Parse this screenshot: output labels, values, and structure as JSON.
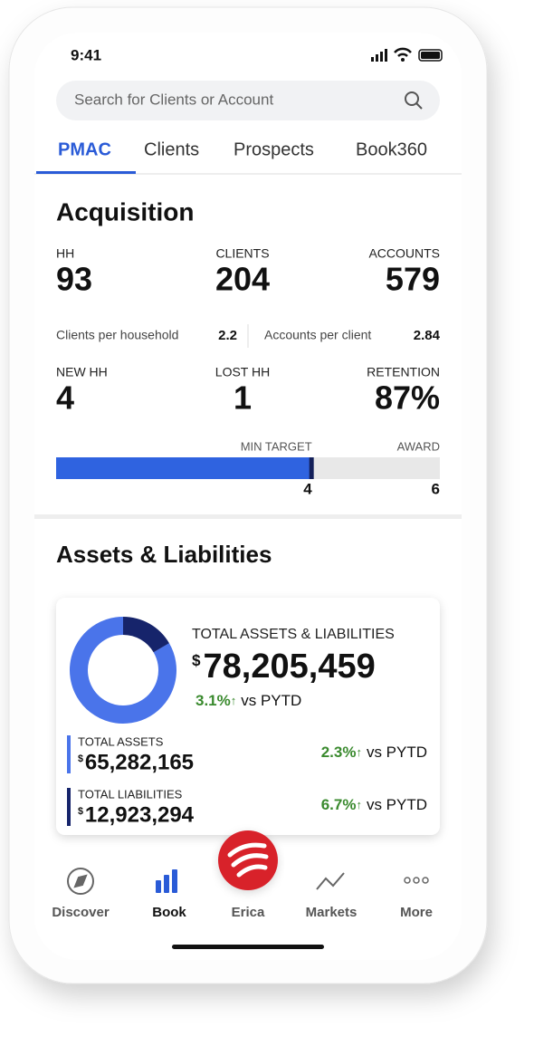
{
  "status_bar": {
    "time": "9:41"
  },
  "search": {
    "placeholder": "Search for Clients or Account"
  },
  "tabs": [
    "PMAC",
    "Clients",
    "Prospects",
    "Book360"
  ],
  "acquisition": {
    "title": "Acquisition",
    "stats": [
      {
        "label": "HH",
        "value": 93
      },
      {
        "label": "CLIENTS",
        "value": 204
      },
      {
        "label": "ACCOUNTS",
        "value": 579
      }
    ],
    "ratios": [
      {
        "label": "Clients per household",
        "value": 2.2
      },
      {
        "label": "Accounts per client",
        "value": 2.84
      }
    ],
    "retention_stats": [
      {
        "label": "NEW HH",
        "value": 4
      },
      {
        "label": "LOST HH",
        "value": 1
      },
      {
        "label": "RETENTION",
        "value": "87%"
      }
    ],
    "progress": {
      "min_target_label": "MIN TARGET",
      "min_target": 4,
      "award_label": "AWARD",
      "award": 6
    }
  },
  "assets_liabilities": {
    "title": "Assets & Liabilities",
    "total": {
      "label": "TOTAL ASSETS & LIABILITIES",
      "currency": "$",
      "amount": "78,205,459",
      "change": "3.1%",
      "arrow": "↑",
      "comparison": "vs PYTD"
    },
    "assets": {
      "label": "TOTAL ASSETS",
      "currency": "$",
      "amount": "65,282,165",
      "change": "2.3%",
      "arrow": "↑",
      "comparison": "vs PYTD"
    },
    "liabilities": {
      "label": "TOTAL LIABILITIES",
      "currency": "$",
      "amount": "12,923,294",
      "change": "6.7%",
      "arrow": "↑",
      "comparison": "vs PYTD"
    }
  },
  "nav": [
    "Discover",
    "Book",
    "Erica",
    "Markets",
    "More"
  ]
}
